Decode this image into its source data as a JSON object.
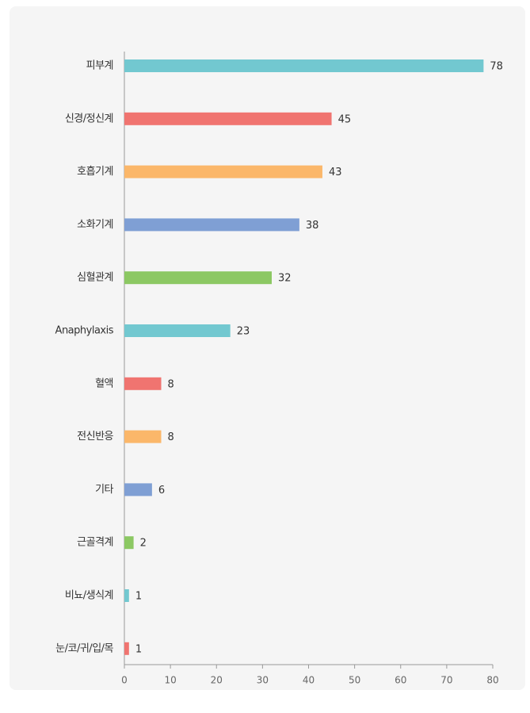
{
  "chart_data": {
    "type": "barh",
    "categories": [
      "피부계",
      "신경/정신계",
      "호흡기계",
      "소화기계",
      "심혈관계",
      "Anaphylaxis",
      "혈액",
      "전신반응",
      "기타",
      "근골격계",
      "비뇨/생식계",
      "눈/코/귀/입/목"
    ],
    "values": [
      78,
      45,
      43,
      38,
      32,
      23,
      8,
      8,
      6,
      2,
      1,
      1
    ],
    "colors": [
      "#72c8d0",
      "#f07470",
      "#fbb76a",
      "#7f9fd4",
      "#8cc863",
      "#72c8d0",
      "#f07470",
      "#fbb76a",
      "#7f9fd4",
      "#8cc863",
      "#72c8d0",
      "#f07470"
    ],
    "xlim": [
      0,
      80
    ],
    "xticks": [
      0,
      10,
      20,
      30,
      40,
      50,
      60,
      70,
      80
    ]
  }
}
